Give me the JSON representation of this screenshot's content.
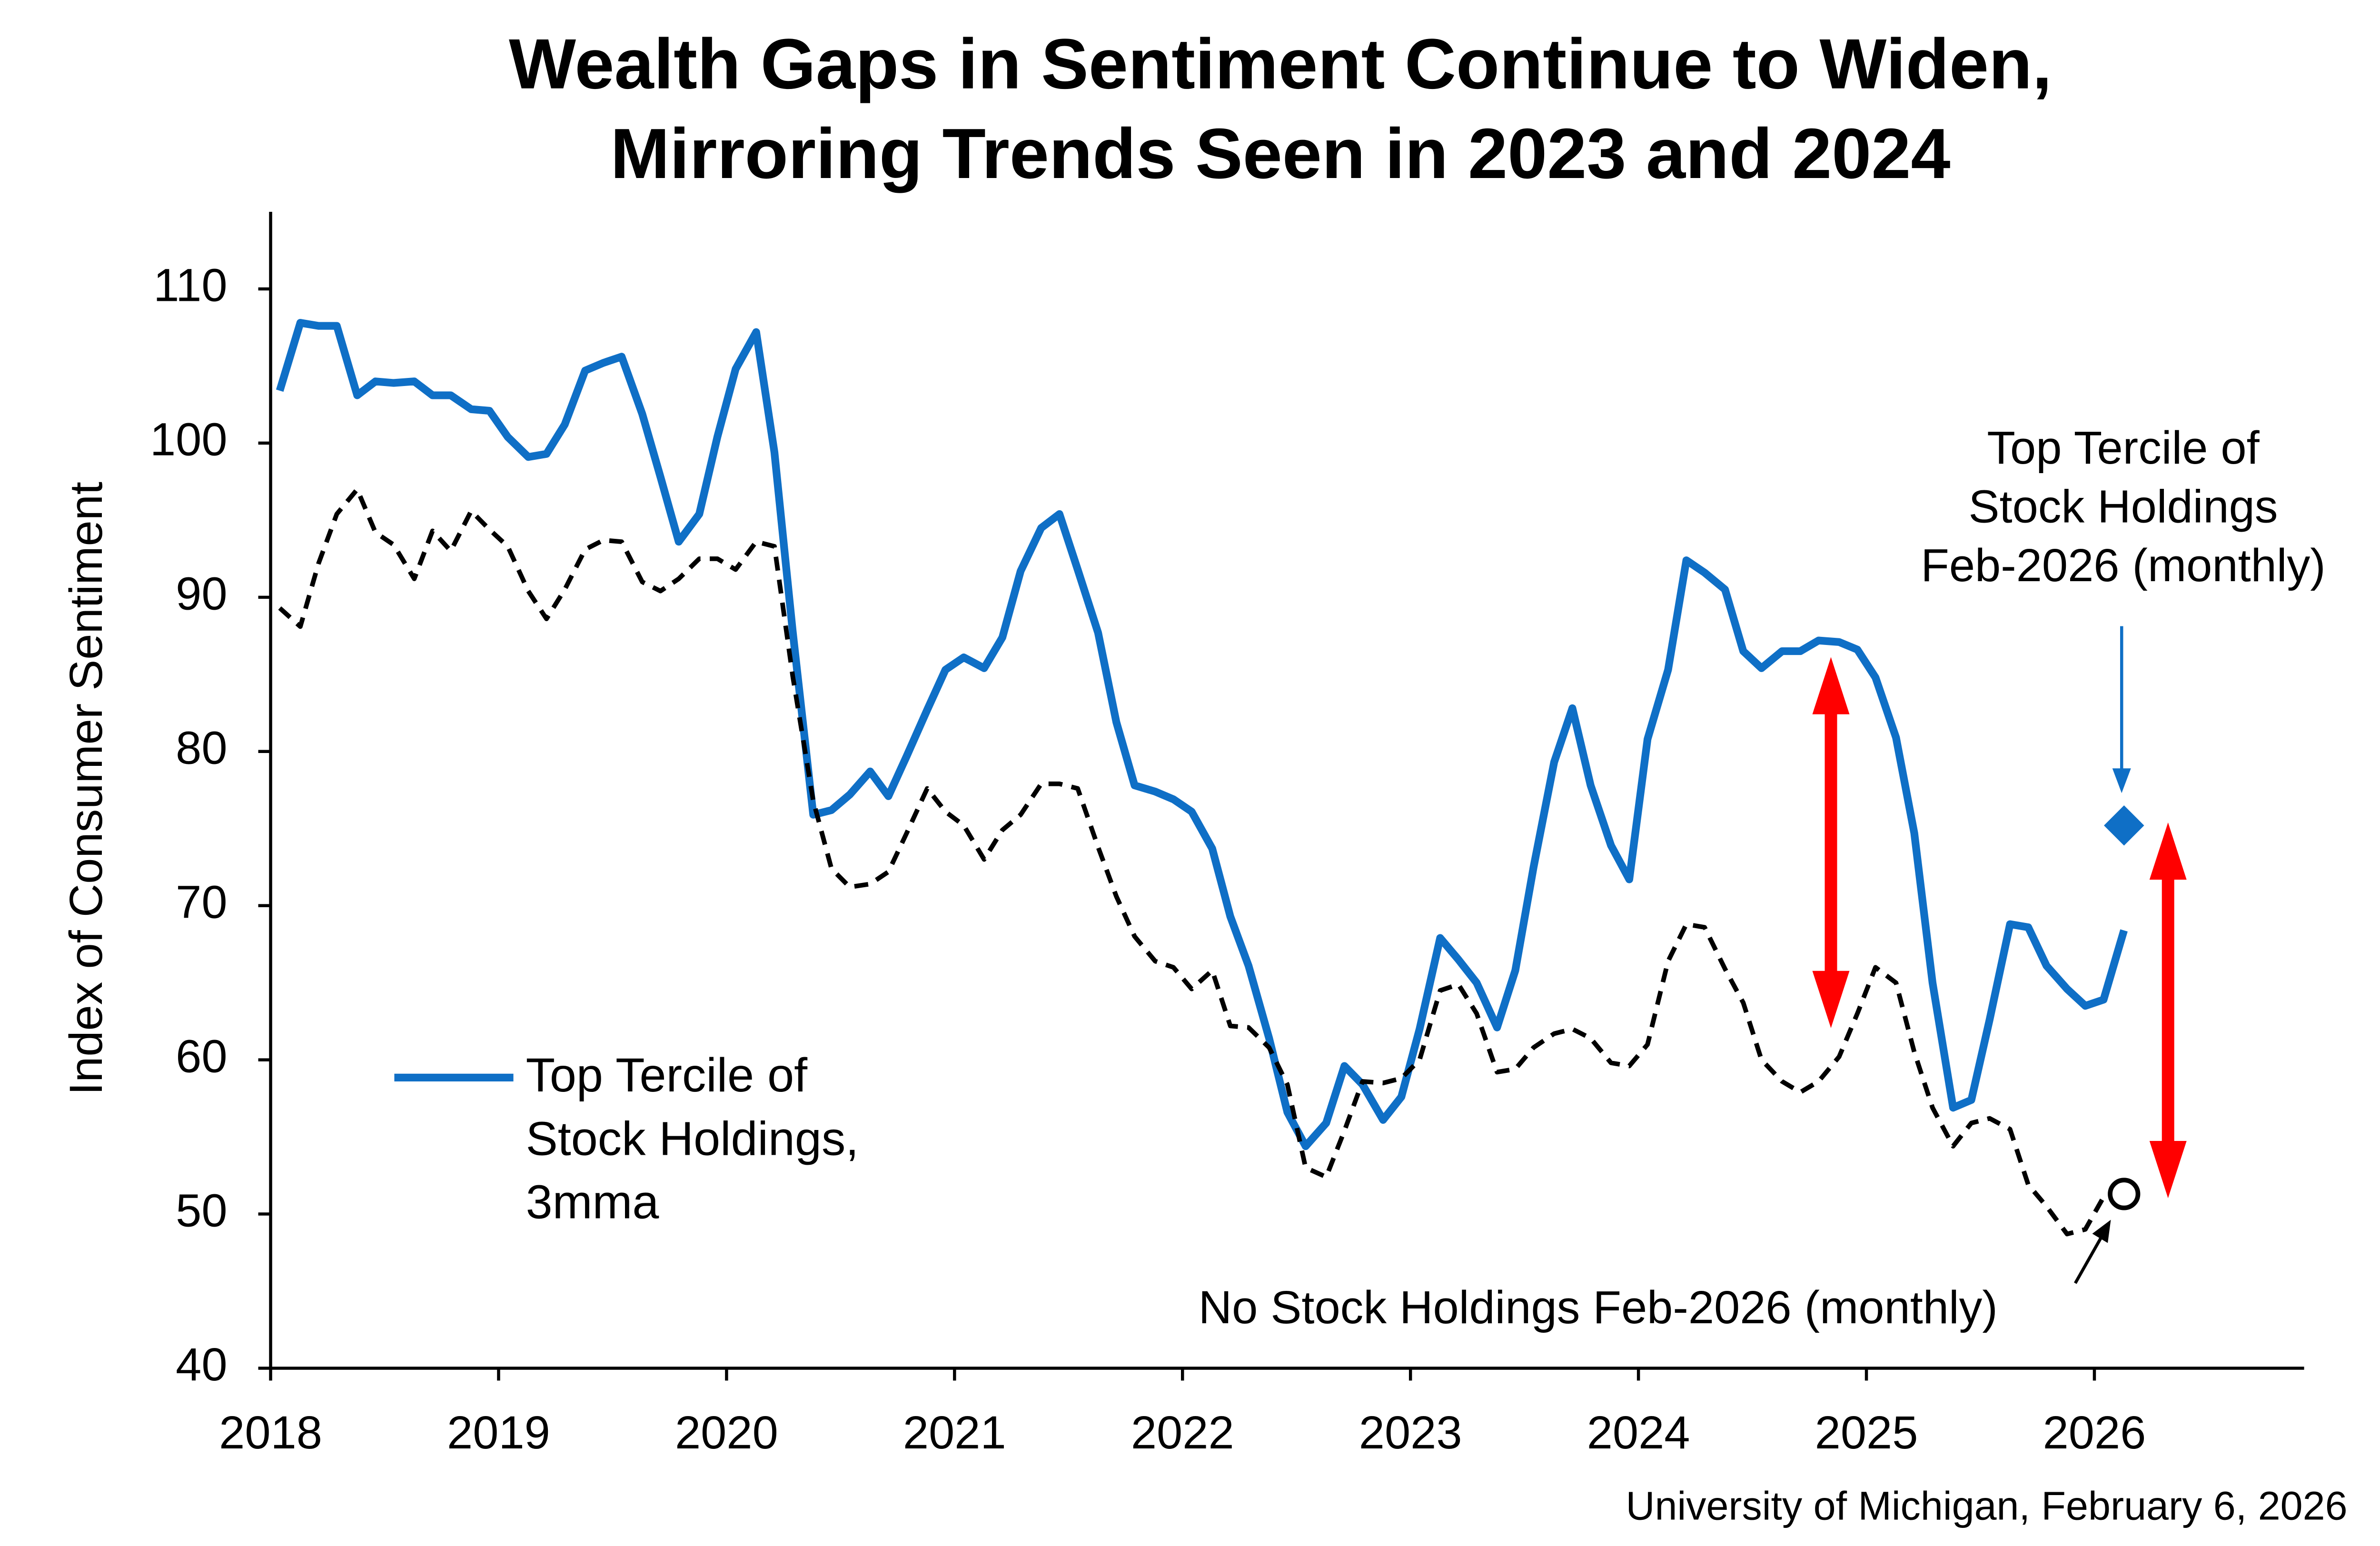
{
  "chart_data": {
    "type": "line",
    "title": [
      "Wealth Gaps in Sentiment Continue to Widen,",
      "Mirroring Trends Seen in 2023 and 2024"
    ],
    "y_label": "Index of Consumer Sentiment",
    "source": "University of Michigan, February 6, 2026",
    "x": [
      2018.04,
      2018.13,
      2018.21,
      2018.29,
      2018.38,
      2018.46,
      2018.54,
      2018.63,
      2018.71,
      2018.79,
      2018.88,
      2018.96,
      2019.04,
      2019.13,
      2019.21,
      2019.29,
      2019.38,
      2019.46,
      2019.54,
      2019.63,
      2019.71,
      2019.79,
      2019.88,
      2019.96,
      2020.04,
      2020.13,
      2020.21,
      2020.29,
      2020.38,
      2020.46,
      2020.54,
      2020.63,
      2020.71,
      2020.79,
      2020.88,
      2020.96,
      2021.04,
      2021.13,
      2021.21,
      2021.29,
      2021.38,
      2021.46,
      2021.54,
      2021.63,
      2021.71,
      2021.79,
      2021.88,
      2021.96,
      2022.04,
      2022.13,
      2022.21,
      2022.29,
      2022.38,
      2022.46,
      2022.54,
      2022.63,
      2022.71,
      2022.79,
      2022.88,
      2022.96,
      2023.04,
      2023.13,
      2023.21,
      2023.29,
      2023.38,
      2023.46,
      2023.54,
      2023.63,
      2023.71,
      2023.79,
      2023.88,
      2023.96,
      2024.04,
      2024.13,
      2024.21,
      2024.29,
      2024.38,
      2024.46,
      2024.54,
      2024.63,
      2024.71,
      2024.79,
      2024.88,
      2024.96,
      2025.04,
      2025.13,
      2025.21,
      2025.29,
      2025.38,
      2025.46,
      2025.54,
      2025.63,
      2025.71,
      2025.79,
      2025.88,
      2025.96,
      2026.04,
      2026.13
    ],
    "series": [
      {
        "name": "Top Tercile of Stock Holdings, 3mma",
        "color": "#0f6fc6",
        "style": "solid",
        "values": [
          103.4,
          107.8,
          107.6,
          107.6,
          103.1,
          104.0,
          103.9,
          104.0,
          103.1,
          103.1,
          102.2,
          102.1,
          100.4,
          99.1,
          99.3,
          101.2,
          104.7,
          105.2,
          105.6,
          101.9,
          97.8,
          93.6,
          95.4,
          100.4,
          104.8,
          107.2,
          99.4,
          87.8,
          75.9,
          76.2,
          77.2,
          78.7,
          77.1,
          79.7,
          82.7,
          85.3,
          86.1,
          85.4,
          87.4,
          91.7,
          94.5,
          95.4,
          91.8,
          87.7,
          81.9,
          77.8,
          77.4,
          76.9,
          76.1,
          73.7,
          69.3,
          66.1,
          61.4,
          56.6,
          54.4,
          55.9,
          59.6,
          58.4,
          56.1,
          57.6,
          62.0,
          67.9,
          66.5,
          65.0,
          62.1,
          65.8,
          72.5,
          79.3,
          82.8,
          77.8,
          73.9,
          71.7,
          80.8,
          85.3,
          92.4,
          91.6,
          90.5,
          86.5,
          85.4,
          86.5,
          86.5,
          87.2,
          87.1,
          86.6,
          84.8,
          80.9,
          74.7,
          65.0,
          56.9,
          57.4,
          62.6,
          68.8,
          68.6,
          66.1,
          64.6,
          63.5,
          63.9,
          68.4
        ]
      },
      {
        "color": "#000000",
        "style": "dashed",
        "values": [
          89.3,
          88.1,
          92.2,
          95.4,
          97.0,
          94.2,
          93.4,
          91.2,
          94.3,
          93.0,
          95.6,
          94.4,
          93.3,
          90.4,
          88.6,
          90.5,
          93.1,
          93.7,
          93.6,
          91.0,
          90.4,
          91.2,
          92.5,
          92.5,
          91.8,
          93.6,
          93.3,
          84.9,
          76.8,
          72.4,
          71.2,
          71.4,
          72.2,
          74.7,
          77.6,
          76.1,
          75.2,
          73.0,
          74.9,
          75.9,
          77.9,
          77.9,
          77.6,
          73.8,
          70.6,
          68.0,
          66.4,
          66.0,
          64.6,
          65.8,
          62.2,
          62.1,
          60.8,
          58.4,
          53.0,
          52.4,
          55.4,
          58.6,
          58.5,
          58.8,
          60.0,
          64.5,
          64.9,
          63.0,
          59.2,
          59.4,
          60.8,
          61.7,
          62.0,
          61.4,
          59.8,
          59.6,
          61.0,
          66.4,
          68.8,
          68.6,
          65.9,
          63.7,
          60.0,
          58.6,
          57.9,
          58.6,
          60.2,
          63.0,
          66.0,
          65.0,
          60.5,
          56.9,
          54.4,
          55.9,
          56.2,
          55.5,
          51.9,
          50.5,
          48.7,
          49.0,
          51.1,
          null
        ]
      }
    ],
    "points": [
      {
        "marker": "diamond",
        "color": "#0f6fc6",
        "x": 2026.13,
        "value": 75.2
      },
      {
        "marker": "circle",
        "color": "#000000",
        "x": 2026.13,
        "value": 51.3
      }
    ],
    "annotations": [
      {
        "lines": [
          "Top Tercile of",
          "Stock Holdings",
          "Feb-2026 (monthly)"
        ]
      },
      {
        "lines": [
          "No Stock Holdings Feb-2026 (monthly)"
        ]
      }
    ],
    "xlim": [
      2018,
      2026.92
    ],
    "xticks": [
      2018,
      2019,
      2020,
      2021,
      2022,
      2023,
      2024,
      2025,
      2026
    ],
    "ylim": [
      40,
      115
    ],
    "yticks": [
      40,
      50,
      60,
      70,
      80,
      90,
      100,
      110
    ],
    "grid": false
  }
}
